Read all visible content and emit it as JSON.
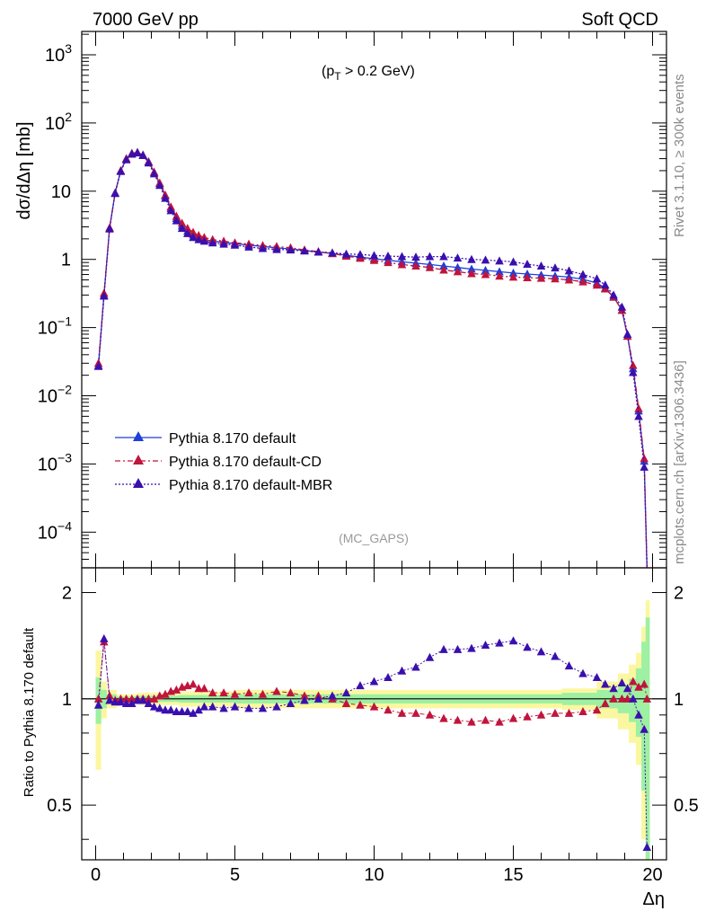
{
  "header": {
    "left": "7000 GeV pp",
    "right": "Soft QCD"
  },
  "side": {
    "top": "Rivet 3.1.10, ≥ 300k events",
    "bottom": "mcplots.cern.ch [arXiv:1306.3436]"
  },
  "main": {
    "ylabel": "dσ/dΔη [mb]",
    "cut_prefix": "(p",
    "cut_sub": "T",
    "cut_suffix": " > 0.2 GeV)",
    "analysis": "(MC_GAPS)",
    "ytick_labels": [
      {
        "base": "10",
        "exp": "−4",
        "value": 0.0001
      },
      {
        "base": "10",
        "exp": "−3",
        "value": 0.001
      },
      {
        "base": "10",
        "exp": "−2",
        "value": 0.01
      },
      {
        "base": "10",
        "exp": "−1",
        "value": 0.1
      },
      {
        "base": "1",
        "exp": "",
        "value": 1
      },
      {
        "base": "10",
        "exp": "",
        "value": 10
      },
      {
        "base": "10",
        "exp": "2",
        "value": 100
      },
      {
        "base": "10",
        "exp": "3",
        "value": 1000
      }
    ]
  },
  "ratio": {
    "ylabel": "Ratio to Pythia 8.170 default",
    "ytick_labels": [
      "0.5",
      "1",
      "2"
    ]
  },
  "xaxis": {
    "label": "Δη",
    "tick_labels": [
      "0",
      "5",
      "10",
      "15",
      "20"
    ]
  },
  "legend": [
    {
      "label": "Pythia 8.170 default",
      "color": "#1f3fd8",
      "dash": "solid"
    },
    {
      "label": "Pythia 8.170 default-CD",
      "color": "#c0143c",
      "dash": "dashdot"
    },
    {
      "label": "Pythia 8.170 default-MBR",
      "color": "#3a0fae",
      "dash": "dotted"
    }
  ],
  "chart_data": [
    {
      "type": "line",
      "title": "",
      "xlabel": "Δη",
      "ylabel": "dσ/dΔη [mb]",
      "xlim": [
        -0.5,
        20.5
      ],
      "ylim": [
        3e-05,
        2200
      ],
      "yscale": "log",
      "grid": false,
      "legend_position": "bottom-left",
      "x": [
        0.1,
        0.3,
        0.5,
        0.7,
        0.9,
        1.1,
        1.3,
        1.5,
        1.7,
        1.9,
        2.1,
        2.3,
        2.5,
        2.7,
        2.9,
        3.1,
        3.3,
        3.5,
        3.7,
        3.9,
        4.2,
        4.6,
        5.0,
        5.5,
        6.0,
        6.5,
        7.0,
        7.5,
        8.0,
        8.5,
        9.0,
        9.5,
        10.0,
        10.5,
        11.0,
        11.5,
        12.0,
        12.5,
        13.0,
        13.5,
        14.0,
        14.5,
        15.0,
        15.5,
        16.0,
        16.5,
        17.0,
        17.5,
        18.0,
        18.3,
        18.6,
        18.9,
        19.1,
        19.3,
        19.5,
        19.7,
        19.8
      ],
      "series": [
        {
          "name": "Pythia 8.170 default",
          "color": "#1f3fd8",
          "values": [
            0.028,
            0.3,
            2.9,
            9.5,
            20,
            30,
            36,
            37,
            34,
            27,
            19,
            13,
            8.5,
            5.6,
            4.0,
            3.1,
            2.6,
            2.3,
            2.1,
            1.95,
            1.85,
            1.78,
            1.7,
            1.62,
            1.55,
            1.48,
            1.42,
            1.35,
            1.28,
            1.22,
            1.15,
            1.08,
            1.02,
            0.97,
            0.92,
            0.88,
            0.84,
            0.8,
            0.76,
            0.72,
            0.69,
            0.66,
            0.63,
            0.61,
            0.59,
            0.57,
            0.55,
            0.51,
            0.45,
            0.38,
            0.28,
            0.18,
            0.075,
            0.025,
            0.006,
            0.0011,
            3e-05
          ]
        },
        {
          "name": "Pythia 8.170 default-CD",
          "color": "#c0143c",
          "values": [
            0.03,
            0.32,
            2.9,
            9.4,
            20,
            30,
            36,
            37,
            34,
            27,
            19,
            13.2,
            8.8,
            5.9,
            4.3,
            3.4,
            2.85,
            2.5,
            2.25,
            2.1,
            1.95,
            1.85,
            1.75,
            1.68,
            1.6,
            1.55,
            1.48,
            1.38,
            1.3,
            1.22,
            1.12,
            1.04,
            0.97,
            0.9,
            0.84,
            0.8,
            0.76,
            0.7,
            0.66,
            0.62,
            0.6,
            0.57,
            0.55,
            0.54,
            0.53,
            0.52,
            0.5,
            0.47,
            0.42,
            0.37,
            0.28,
            0.18,
            0.075,
            0.028,
            0.0065,
            0.0012,
            3e-05
          ]
        },
        {
          "name": "Pythia 8.170 default-MBR",
          "color": "#3a0fae",
          "values": [
            0.027,
            0.29,
            2.8,
            9.3,
            19.5,
            29,
            35,
            36.5,
            33.5,
            26,
            18,
            12.2,
            7.9,
            5.2,
            3.7,
            2.85,
            2.4,
            2.1,
            1.95,
            1.85,
            1.75,
            1.68,
            1.62,
            1.52,
            1.45,
            1.4,
            1.38,
            1.33,
            1.28,
            1.25,
            1.2,
            1.18,
            1.14,
            1.12,
            1.1,
            1.08,
            1.1,
            1.1,
            1.05,
            1.0,
            0.98,
            0.95,
            0.92,
            0.85,
            0.8,
            0.75,
            0.68,
            0.6,
            0.52,
            0.42,
            0.3,
            0.2,
            0.08,
            0.022,
            0.005,
            0.0009,
            3e-05
          ]
        }
      ]
    },
    {
      "type": "line",
      "title": "",
      "xlabel": "Δη",
      "ylabel": "Ratio to Pythia 8.170 default",
      "xlim": [
        -0.5,
        20.5
      ],
      "ylim": [
        0.35,
        2.35
      ],
      "yscale": "log",
      "grid": false,
      "reference_line": 1,
      "band": {
        "x": [
          0.1,
          0.3,
          0.5,
          1.0,
          2.0,
          4.0,
          6.0,
          8.0,
          10.0,
          12.0,
          14.0,
          16.0,
          17.5,
          18.5,
          19.0,
          19.3,
          19.5,
          19.7,
          19.8
        ],
        "yellow_half_width": [
          0.37,
          0.12,
          0.06,
          0.03,
          0.04,
          0.05,
          0.06,
          0.06,
          0.06,
          0.06,
          0.06,
          0.06,
          0.07,
          0.12,
          0.18,
          0.25,
          0.35,
          0.6,
          0.9
        ],
        "green_half_width": [
          0.15,
          0.06,
          0.03,
          0.015,
          0.02,
          0.025,
          0.03,
          0.03,
          0.03,
          0.03,
          0.03,
          0.03,
          0.04,
          0.06,
          0.09,
          0.14,
          0.22,
          0.45,
          0.7
        ]
      },
      "x": [
        0.1,
        0.3,
        0.5,
        0.7,
        0.9,
        1.1,
        1.3,
        1.5,
        1.7,
        1.9,
        2.1,
        2.3,
        2.5,
        2.7,
        2.9,
        3.1,
        3.3,
        3.5,
        3.7,
        3.9,
        4.2,
        4.6,
        5.0,
        5.5,
        6.0,
        6.5,
        7.0,
        7.5,
        8.0,
        8.5,
        9.0,
        9.5,
        10.0,
        10.5,
        11.0,
        11.5,
        12.0,
        12.5,
        13.0,
        13.5,
        14.0,
        14.5,
        15.0,
        15.5,
        16.0,
        16.5,
        17.0,
        17.5,
        18.0,
        18.3,
        18.6,
        18.9,
        19.1,
        19.3,
        19.5,
        19.7,
        19.8
      ],
      "series": [
        {
          "name": "Pythia 8.170 default-CD",
          "color": "#c0143c",
          "values": [
            1.0,
            1.45,
            1.02,
            0.99,
            1.0,
            1.0,
            1.0,
            1.0,
            1.0,
            1.0,
            1.0,
            1.02,
            1.03,
            1.05,
            1.06,
            1.08,
            1.09,
            1.1,
            1.07,
            1.07,
            1.04,
            1.04,
            1.03,
            1.04,
            1.03,
            1.05,
            1.04,
            1.02,
            1.02,
            1.0,
            0.97,
            0.96,
            0.95,
            0.93,
            0.91,
            0.91,
            0.9,
            0.88,
            0.87,
            0.86,
            0.87,
            0.86,
            0.88,
            0.89,
            0.9,
            0.91,
            0.91,
            0.92,
            0.93,
            0.97,
            1.0,
            1.0,
            1.0,
            1.12,
            1.08,
            1.1,
            1.0
          ]
        },
        {
          "name": "Pythia 8.170 default-MBR",
          "color": "#3a0fae",
          "values": [
            0.96,
            1.48,
            0.99,
            0.98,
            0.98,
            0.97,
            0.97,
            0.99,
            0.99,
            0.97,
            0.95,
            0.94,
            0.93,
            0.93,
            0.92,
            0.92,
            0.92,
            0.91,
            0.93,
            0.95,
            0.95,
            0.94,
            0.95,
            0.94,
            0.94,
            0.95,
            0.97,
            0.99,
            1.0,
            1.02,
            1.04,
            1.09,
            1.12,
            1.15,
            1.2,
            1.23,
            1.31,
            1.38,
            1.38,
            1.39,
            1.42,
            1.44,
            1.46,
            1.4,
            1.36,
            1.32,
            1.24,
            1.18,
            1.15,
            1.1,
            1.07,
            1.11,
            1.07,
            1.0,
            0.9,
            0.82,
            0.38
          ]
        }
      ]
    }
  ]
}
